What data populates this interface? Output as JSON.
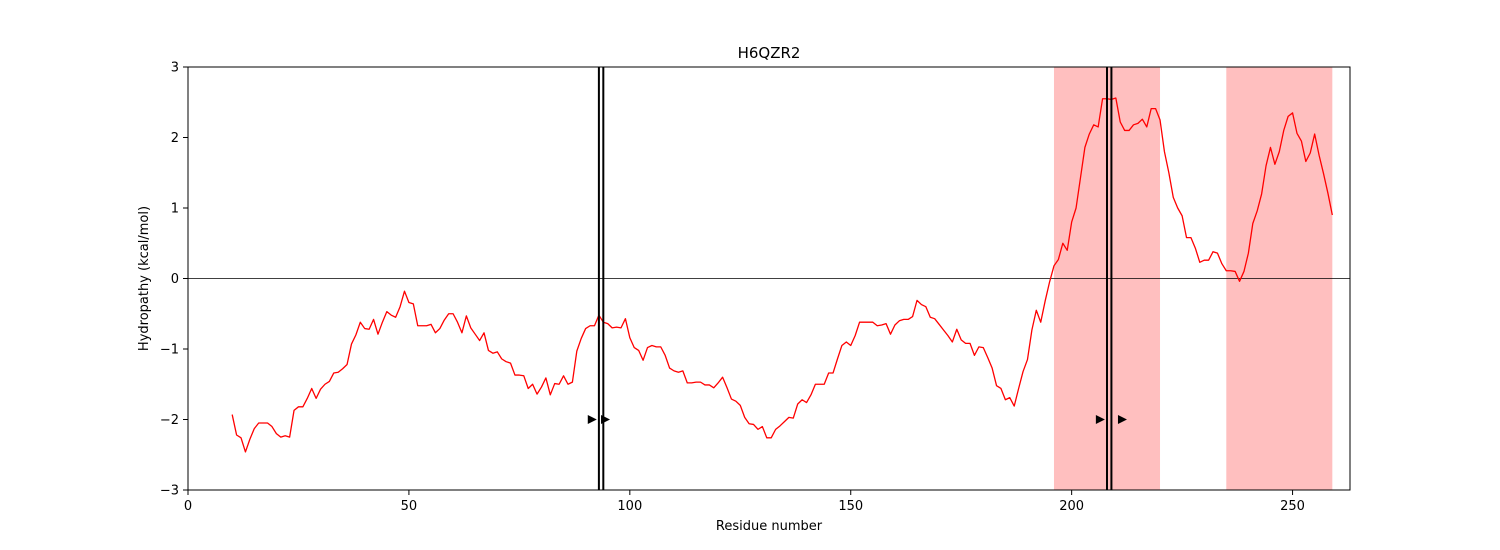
{
  "chart_data": {
    "type": "line",
    "title": "H6QZR2",
    "xlabel": "Residue number",
    "ylabel": "Hydropathy (kcal/mol)",
    "xlim": [
      0,
      263
    ],
    "ylim": [
      -3,
      3
    ],
    "x_ticks": [
      0,
      50,
      100,
      150,
      200,
      250
    ],
    "y_ticks": [
      -3,
      -2,
      -1,
      0,
      1,
      2,
      3
    ],
    "y_tick_labels": [
      "−3",
      "−2",
      "−1",
      "0",
      "1",
      "2",
      "3"
    ],
    "grid": false,
    "zero_line": true,
    "colors": {
      "line": "#ff0000",
      "shade": "#ffbfbf",
      "axis": "#000000",
      "marker": "#000000"
    },
    "shaded_regions": [
      {
        "x_start": 196,
        "x_end": 220
      },
      {
        "x_start": 235,
        "x_end": 259
      }
    ],
    "vertical_lines": [
      93,
      94,
      208,
      209
    ],
    "markers": [
      {
        "x": 91.5,
        "y": -2.0,
        "shape": "triangle-right"
      },
      {
        "x": 94.5,
        "y": -2.0,
        "shape": "triangle-right"
      },
      {
        "x": 206.5,
        "y": -2.0,
        "shape": "triangle-right"
      },
      {
        "x": 211.5,
        "y": -2.0,
        "shape": "triangle-right"
      }
    ],
    "series": [
      {
        "x_start": 10,
        "values": [
          -1.93,
          -2.22,
          -2.26,
          -2.46,
          -2.28,
          -2.13,
          -2.05,
          -2.05,
          -2.05,
          -2.1,
          -2.2,
          -2.25,
          -2.23,
          -2.25,
          -1.87,
          -1.82,
          -1.82,
          -1.7,
          -1.56,
          -1.7,
          -1.57,
          -1.5,
          -1.46,
          -1.34,
          -1.33,
          -1.28,
          -1.22,
          -0.93,
          -0.8,
          -0.62,
          -0.71,
          -0.72,
          -0.58,
          -0.79,
          -0.62,
          -0.47,
          -0.52,
          -0.55,
          -0.4,
          -0.18,
          -0.34,
          -0.36,
          -0.67,
          -0.67,
          -0.67,
          -0.65,
          -0.77,
          -0.71,
          -0.59,
          -0.5,
          -0.5,
          -0.62,
          -0.77,
          -0.53,
          -0.7,
          -0.79,
          -0.88,
          -0.77,
          -1.02,
          -1.06,
          -1.04,
          -1.14,
          -1.18,
          -1.2,
          -1.37,
          -1.37,
          -1.38,
          -1.56,
          -1.5,
          -1.64,
          -1.54,
          -1.41,
          -1.65,
          -1.49,
          -1.5,
          -1.38,
          -1.5,
          -1.47,
          -1.03,
          -0.85,
          -0.71,
          -0.67,
          -0.67,
          -0.52,
          -0.62,
          -0.64,
          -0.7,
          -0.69,
          -0.7,
          -0.57,
          -0.84,
          -0.98,
          -1.02,
          -1.16,
          -0.98,
          -0.95,
          -0.97,
          -0.97,
          -1.09,
          -1.27,
          -1.31,
          -1.33,
          -1.31,
          -1.48,
          -1.48,
          -1.47,
          -1.47,
          -1.51,
          -1.51,
          -1.55,
          -1.48,
          -1.4,
          -1.55,
          -1.71,
          -1.74,
          -1.8,
          -1.97,
          -2.06,
          -2.07,
          -2.14,
          -2.1,
          -2.26,
          -2.26,
          -2.14,
          -2.09,
          -2.03,
          -1.97,
          -1.98,
          -1.78,
          -1.72,
          -1.76,
          -1.65,
          -1.5,
          -1.5,
          -1.5,
          -1.34,
          -1.34,
          -1.14,
          -0.95,
          -0.9,
          -0.95,
          -0.81,
          -0.62,
          -0.62,
          -0.62,
          -0.62,
          -0.67,
          -0.66,
          -0.64,
          -0.79,
          -0.66,
          -0.6,
          -0.58,
          -0.58,
          -0.54,
          -0.31,
          -0.37,
          -0.4,
          -0.55,
          -0.57,
          -0.65,
          -0.73,
          -0.81,
          -0.9,
          -0.72,
          -0.87,
          -0.92,
          -0.92,
          -1.09,
          -0.97,
          -0.98,
          -1.12,
          -1.27,
          -1.52,
          -1.56,
          -1.72,
          -1.69,
          -1.81,
          -1.56,
          -1.32,
          -1.15,
          -0.73,
          -0.45,
          -0.62,
          -0.32,
          -0.05,
          0.18,
          0.27,
          0.5,
          0.4,
          0.8,
          1.0,
          1.43,
          1.86,
          2.05,
          2.18,
          2.15,
          2.55,
          2.55,
          2.54,
          2.56,
          2.22,
          2.1,
          2.1,
          2.18,
          2.2,
          2.26,
          2.15,
          2.41,
          2.41,
          2.25,
          1.8,
          1.5,
          1.15,
          1.0,
          0.89,
          0.58,
          0.58,
          0.43,
          0.23,
          0.26,
          0.26,
          0.38,
          0.36,
          0.21,
          0.11,
          0.11,
          0.1,
          -0.04,
          0.1,
          0.36,
          0.78,
          0.96,
          1.2,
          1.6,
          1.86,
          1.62,
          1.8,
          2.1,
          2.3,
          2.35,
          2.06,
          1.95,
          1.66,
          1.78,
          2.05,
          1.75,
          1.49,
          1.21,
          0.9
        ]
      }
    ]
  }
}
